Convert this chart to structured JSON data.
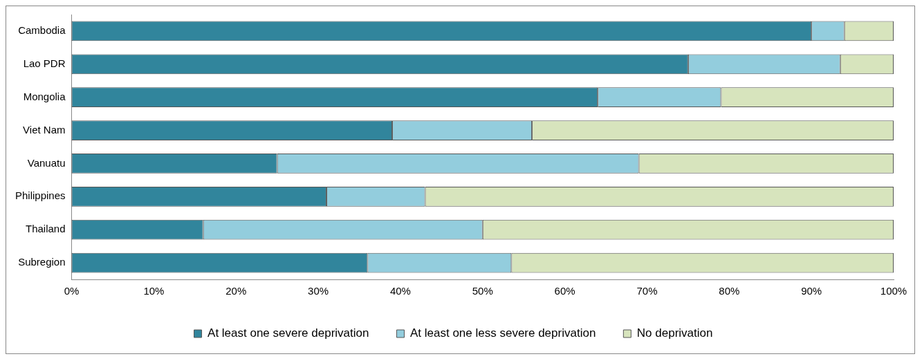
{
  "chart_data": {
    "type": "bar",
    "orientation": "horizontal",
    "stacked": true,
    "categories": [
      "Cambodia",
      "Lao PDR",
      "Mongolia",
      "Viet Nam",
      "Vanuatu",
      "Philippines",
      "Thailand",
      "Subregion"
    ],
    "series": [
      {
        "name": "At least one severe deprivation",
        "color": "#31859c",
        "values": [
          90,
          75,
          64,
          39,
          25,
          31,
          16,
          36
        ]
      },
      {
        "name": "At least one less severe deprivation",
        "color": "#93cddd",
        "values": [
          4,
          18.5,
          15,
          17,
          44,
          12,
          34,
          17.5
        ]
      },
      {
        "name": "No deprivation",
        "color": "#d7e4bd",
        "values": [
          6,
          6.5,
          21,
          44,
          31,
          57,
          50,
          46.5
        ]
      }
    ],
    "xlim": [
      0,
      100
    ],
    "xticks": [
      {
        "value": 0,
        "label": "0%"
      },
      {
        "value": 10,
        "label": "10%"
      },
      {
        "value": 20,
        "label": "20%"
      },
      {
        "value": 30,
        "label": "30%"
      },
      {
        "value": 40,
        "label": "40%"
      },
      {
        "value": 50,
        "label": "50%"
      },
      {
        "value": 60,
        "label": "60%"
      },
      {
        "value": 70,
        "label": "70%"
      },
      {
        "value": 80,
        "label": "80%"
      },
      {
        "value": 90,
        "label": "90%"
      },
      {
        "value": 100,
        "label": "100%"
      }
    ],
    "grid": false,
    "legend": "bottom"
  }
}
